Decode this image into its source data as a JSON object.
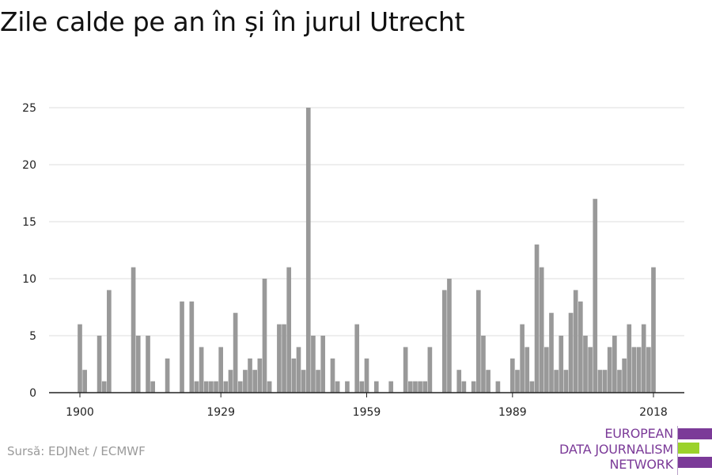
{
  "header": {
    "title": "Zile calde pe an în și în jurul Utrecht"
  },
  "footer": {
    "source": "Sursă: EDJNet / ECMWF"
  },
  "logo": {
    "lines": [
      "EUROPEAN",
      "DATA JOURNALISM",
      "NETWORK"
    ],
    "colors": {
      "text": "#7b3a98",
      "bar_purple": "#7b3a98",
      "bar_green": "#9bd22a"
    }
  },
  "colors": {
    "bar": "#999999",
    "grid": "#dddddd",
    "axis": "#222222",
    "text": "#222222"
  },
  "chart_data": {
    "type": "bar",
    "title": "Zile calde pe an în și în jurul Utrecht",
    "xlabel": "",
    "ylabel": "",
    "ylim": [
      0,
      25
    ],
    "y_ticks": [
      0,
      5,
      10,
      15,
      20,
      25
    ],
    "x_ticks": [
      1900,
      1929,
      1959,
      1989,
      2018
    ],
    "grid": true,
    "x": [
      1900,
      1901,
      1902,
      1903,
      1904,
      1905,
      1906,
      1907,
      1908,
      1909,
      1910,
      1911,
      1912,
      1913,
      1914,
      1915,
      1916,
      1917,
      1918,
      1919,
      1920,
      1921,
      1922,
      1923,
      1924,
      1925,
      1926,
      1927,
      1928,
      1929,
      1930,
      1931,
      1932,
      1933,
      1934,
      1935,
      1936,
      1937,
      1938,
      1939,
      1940,
      1941,
      1942,
      1943,
      1944,
      1945,
      1946,
      1947,
      1948,
      1949,
      1950,
      1951,
      1952,
      1953,
      1954,
      1955,
      1956,
      1957,
      1958,
      1959,
      1960,
      1961,
      1962,
      1963,
      1964,
      1965,
      1966,
      1967,
      1968,
      1969,
      1970,
      1971,
      1972,
      1973,
      1974,
      1975,
      1976,
      1977,
      1978,
      1979,
      1980,
      1981,
      1982,
      1983,
      1984,
      1985,
      1986,
      1987,
      1988,
      1989,
      1990,
      1991,
      1992,
      1993,
      1994,
      1995,
      1996,
      1997,
      1998,
      1999,
      2000,
      2001,
      2002,
      2003,
      2004,
      2005,
      2006,
      2007,
      2008,
      2009,
      2010,
      2011,
      2012,
      2013,
      2014,
      2015,
      2016,
      2017,
      2018
    ],
    "values": [
      6,
      2,
      0,
      0,
      5,
      1,
      9,
      0,
      0,
      0,
      0,
      11,
      5,
      0,
      5,
      1,
      0,
      0,
      3,
      0,
      0,
      8,
      0,
      8,
      1,
      4,
      1,
      1,
      1,
      4,
      1,
      2,
      7,
      1,
      2,
      3,
      2,
      3,
      10,
      1,
      0,
      6,
      6,
      11,
      3,
      4,
      2,
      25,
      5,
      2,
      5,
      0,
      3,
      1,
      0,
      1,
      0,
      6,
      1,
      3,
      0,
      1,
      0,
      0,
      1,
      0,
      0,
      4,
      1,
      1,
      1,
      1,
      4,
      0,
      0,
      9,
      10,
      0,
      2,
      1,
      0,
      1,
      9,
      5,
      2,
      0,
      1,
      0,
      0,
      3,
      2,
      6,
      4,
      1,
      13,
      11,
      4,
      7,
      2,
      5,
      2,
      7,
      9,
      8,
      5,
      4,
      17,
      2,
      2,
      4,
      5,
      2,
      3,
      6,
      4,
      4,
      6,
      4,
      11
    ]
  }
}
